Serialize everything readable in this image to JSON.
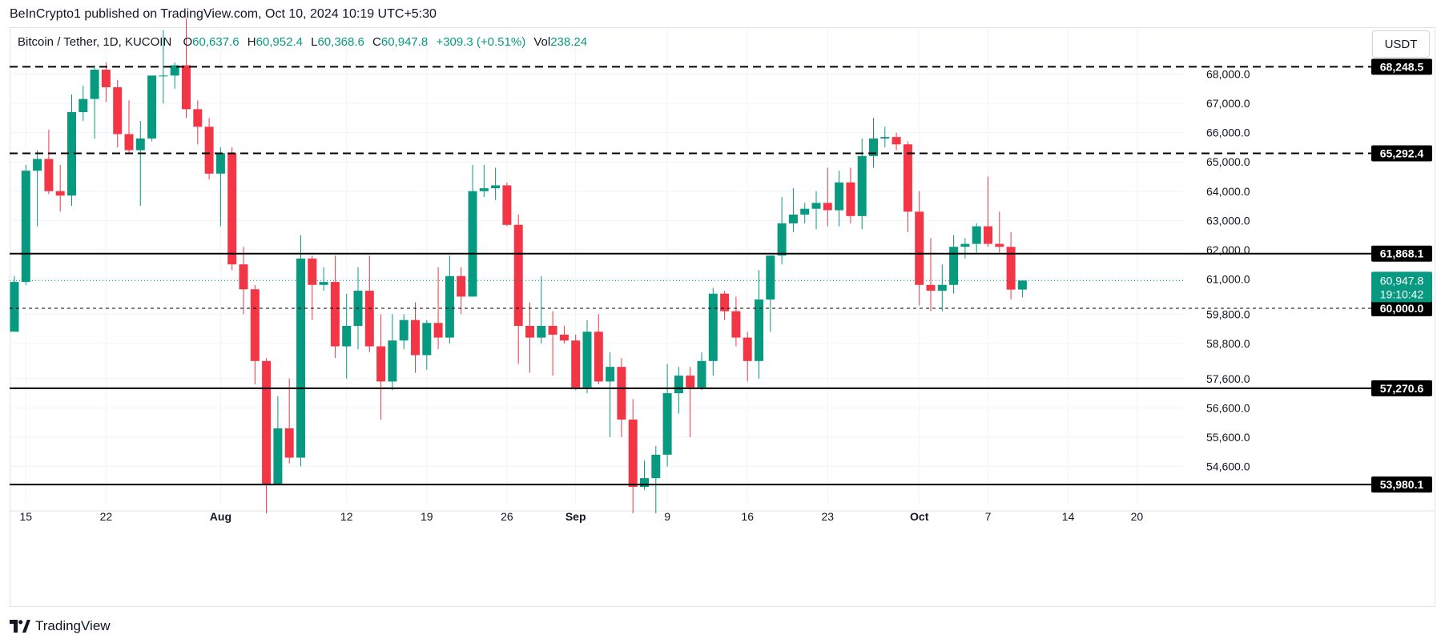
{
  "header": {
    "published_text": "BeInCrypto1 published on TradingView.com, Oct 10, 2024 10:19 UTC+5:30"
  },
  "legend": {
    "symbol": "Bitcoin / Tether, 1D, KUCOIN",
    "open_label": "O",
    "open_value": "60,637.6",
    "high_label": "H",
    "high_value": "60,952.4",
    "low_label": "L",
    "low_value": "60,368.6",
    "close_label": "C",
    "close_value": "60,947.8",
    "change_value": "+309.3 (+0.51%)",
    "vol_label": "Vol",
    "vol_value": "238.24"
  },
  "currency_button": "USDT",
  "footer": {
    "brand": "TradingView"
  },
  "colors": {
    "up": "#089981",
    "down": "#f23645",
    "grid": "#f0f3fa",
    "axis_text": "#131722",
    "level_line": "#000000",
    "price_line": "#089981"
  },
  "chart_data": {
    "type": "candlestick",
    "title": "Bitcoin / Tether, 1D, KUCOIN",
    "ylim": [
      53300,
      69600
    ],
    "y_ticks": [
      "54,600.0",
      "55,600.0",
      "56,600.0",
      "57,600.0",
      "58,800.0",
      "59,800.0",
      "61,000.0",
      "62,000.0",
      "63,000.0",
      "64,000.0",
      "65,000.0",
      "66,000.0",
      "67,000.0",
      "68,000.0"
    ],
    "y_tick_values": [
      54600,
      55600,
      56600,
      57600,
      58800,
      59800,
      61000,
      62000,
      63000,
      64000,
      65000,
      66000,
      67000,
      68000
    ],
    "x_ticks": [
      {
        "label": "15",
        "bar": 1,
        "bold": false
      },
      {
        "label": "22",
        "bar": 8,
        "bold": false
      },
      {
        "label": "Aug",
        "bar": 18,
        "bold": true
      },
      {
        "label": "12",
        "bar": 29,
        "bold": false
      },
      {
        "label": "19",
        "bar": 36,
        "bold": false
      },
      {
        "label": "26",
        "bar": 43,
        "bold": false
      },
      {
        "label": "Sep",
        "bar": 49,
        "bold": true
      },
      {
        "label": "9",
        "bar": 57,
        "bold": false
      },
      {
        "label": "16",
        "bar": 64,
        "bold": false
      },
      {
        "label": "23",
        "bar": 71,
        "bold": false
      },
      {
        "label": "Oct",
        "bar": 79,
        "bold": true
      },
      {
        "label": "7",
        "bar": 85,
        "bold": false
      },
      {
        "label": "14",
        "bar": 92,
        "bold": false
      },
      {
        "label": "20",
        "bar": 98,
        "bold": false
      }
    ],
    "levels": [
      {
        "value": 68248.5,
        "label": "68,248.5",
        "style": "dashed"
      },
      {
        "value": 65292.4,
        "label": "65,292.4",
        "style": "dashed"
      },
      {
        "value": 61868.1,
        "label": "61,868.1",
        "style": "solid"
      },
      {
        "value": 60000.0,
        "label": "60,000.0",
        "style": "dotted"
      },
      {
        "value": 57270.6,
        "label": "57,270.6",
        "style": "solid"
      },
      {
        "value": 53980.1,
        "label": "53,980.1",
        "style": "solid"
      }
    ],
    "last_price": {
      "value": 60947.8,
      "label": "60,947.8",
      "countdown": "19:10:42"
    },
    "candles": [
      {
        "d": "Jul 14",
        "o": 59200,
        "h": 61100,
        "l": 59200,
        "c": 60900
      },
      {
        "d": "Jul 15",
        "o": 60900,
        "h": 64900,
        "l": 60800,
        "c": 64700
      },
      {
        "d": "Jul 16",
        "o": 64700,
        "h": 65400,
        "l": 62800,
        "c": 65100
      },
      {
        "d": "Jul 17",
        "o": 65100,
        "h": 66100,
        "l": 63900,
        "c": 64000
      },
      {
        "d": "Jul 18",
        "o": 64000,
        "h": 64900,
        "l": 63300,
        "c": 63850
      },
      {
        "d": "Jul 19",
        "o": 63850,
        "h": 67300,
        "l": 63500,
        "c": 66700
      },
      {
        "d": "Jul 20",
        "o": 66700,
        "h": 67600,
        "l": 66400,
        "c": 67150
      },
      {
        "d": "Jul 21",
        "o": 67150,
        "h": 68300,
        "l": 65800,
        "c": 68150
      },
      {
        "d": "Jul 22",
        "o": 68150,
        "h": 68400,
        "l": 67050,
        "c": 67550
      },
      {
        "d": "Jul 23",
        "o": 67550,
        "h": 67800,
        "l": 65500,
        "c": 65950
      },
      {
        "d": "Jul 24",
        "o": 65950,
        "h": 67100,
        "l": 65300,
        "c": 65400
      },
      {
        "d": "Jul 25",
        "o": 65400,
        "h": 66400,
        "l": 63500,
        "c": 65800
      },
      {
        "d": "Jul 26",
        "o": 65800,
        "h": 67900,
        "l": 65700,
        "c": 67950
      },
      {
        "d": "Jul 27",
        "o": 67950,
        "h": 69500,
        "l": 67000,
        "c": 67950
      },
      {
        "d": "Jul 28",
        "o": 67950,
        "h": 68400,
        "l": 67500,
        "c": 68300
      },
      {
        "d": "Jul 29",
        "o": 68300,
        "h": 69900,
        "l": 66500,
        "c": 66800
      },
      {
        "d": "Jul 30",
        "o": 66800,
        "h": 67100,
        "l": 65600,
        "c": 66200
      },
      {
        "d": "Jul 31",
        "o": 66200,
        "h": 66500,
        "l": 64400,
        "c": 64600
      },
      {
        "d": "Aug 1",
        "o": 64600,
        "h": 65500,
        "l": 62800,
        "c": 65300
      },
      {
        "d": "Aug 2",
        "o": 65300,
        "h": 65500,
        "l": 61300,
        "c": 61500
      },
      {
        "d": "Aug 3",
        "o": 61500,
        "h": 62100,
        "l": 59800,
        "c": 60650
      },
      {
        "d": "Aug 4",
        "o": 60650,
        "h": 60800,
        "l": 57400,
        "c": 58200
      },
      {
        "d": "Aug 5",
        "o": 58200,
        "h": 58300,
        "l": 53000,
        "c": 54000
      },
      {
        "d": "Aug 6",
        "o": 54000,
        "h": 57000,
        "l": 54000,
        "c": 55900
      },
      {
        "d": "Aug 7",
        "o": 55900,
        "h": 57600,
        "l": 54700,
        "c": 54900
      },
      {
        "d": "Aug 8",
        "o": 54900,
        "h": 62500,
        "l": 54600,
        "c": 61700
      },
      {
        "d": "Aug 9",
        "o": 61700,
        "h": 61800,
        "l": 59600,
        "c": 60800
      },
      {
        "d": "Aug 10",
        "o": 60800,
        "h": 61400,
        "l": 60600,
        "c": 60900
      },
      {
        "d": "Aug 11",
        "o": 60900,
        "h": 61800,
        "l": 58300,
        "c": 58700
      },
      {
        "d": "Aug 12",
        "o": 58700,
        "h": 60500,
        "l": 57600,
        "c": 59400
      },
      {
        "d": "Aug 13",
        "o": 59400,
        "h": 61400,
        "l": 58600,
        "c": 60600
      },
      {
        "d": "Aug 14",
        "o": 60600,
        "h": 61800,
        "l": 58500,
        "c": 58700
      },
      {
        "d": "Aug 15",
        "o": 58700,
        "h": 59800,
        "l": 56200,
        "c": 57500
      },
      {
        "d": "Aug 16",
        "o": 57500,
        "h": 59800,
        "l": 57200,
        "c": 58900
      },
      {
        "d": "Aug 17",
        "o": 58900,
        "h": 59800,
        "l": 58600,
        "c": 59600
      },
      {
        "d": "Aug 18",
        "o": 59600,
        "h": 60200,
        "l": 57800,
        "c": 58400
      },
      {
        "d": "Aug 19",
        "o": 58400,
        "h": 59600,
        "l": 57900,
        "c": 59500
      },
      {
        "d": "Aug 20",
        "o": 59500,
        "h": 61400,
        "l": 58600,
        "c": 59000
      },
      {
        "d": "Aug 21",
        "o": 59000,
        "h": 61800,
        "l": 58800,
        "c": 61100
      },
      {
        "d": "Aug 22",
        "o": 61100,
        "h": 61400,
        "l": 59800,
        "c": 60400
      },
      {
        "d": "Aug 23",
        "o": 60400,
        "h": 64900,
        "l": 60400,
        "c": 64000
      },
      {
        "d": "Aug 24",
        "o": 64000,
        "h": 64900,
        "l": 63800,
        "c": 64100
      },
      {
        "d": "Aug 25",
        "o": 64100,
        "h": 64800,
        "l": 63700,
        "c": 64200
      },
      {
        "d": "Aug 26",
        "o": 64200,
        "h": 64300,
        "l": 62800,
        "c": 62850
      },
      {
        "d": "Aug 27",
        "o": 62850,
        "h": 63200,
        "l": 58100,
        "c": 59400
      },
      {
        "d": "Aug 28",
        "o": 59400,
        "h": 60200,
        "l": 57800,
        "c": 59000
      },
      {
        "d": "Aug 29",
        "o": 59000,
        "h": 61100,
        "l": 58800,
        "c": 59400
      },
      {
        "d": "Aug 30",
        "o": 59400,
        "h": 59900,
        "l": 57700,
        "c": 59100
      },
      {
        "d": "Aug 31",
        "o": 59100,
        "h": 59400,
        "l": 58800,
        "c": 58900
      },
      {
        "d": "Sep 1",
        "o": 58900,
        "h": 59100,
        "l": 57200,
        "c": 57300
      },
      {
        "d": "Sep 2",
        "o": 57300,
        "h": 59600,
        "l": 57100,
        "c": 59200
      },
      {
        "d": "Sep 3",
        "o": 59200,
        "h": 59800,
        "l": 57400,
        "c": 57500
      },
      {
        "d": "Sep 4",
        "o": 57500,
        "h": 58500,
        "l": 55600,
        "c": 58000
      },
      {
        "d": "Sep 5",
        "o": 58000,
        "h": 58300,
        "l": 55600,
        "c": 56200
      },
      {
        "d": "Sep 6",
        "o": 56200,
        "h": 56900,
        "l": 53000,
        "c": 53900
      },
      {
        "d": "Sep 7",
        "o": 53900,
        "h": 54800,
        "l": 53800,
        "c": 54200
      },
      {
        "d": "Sep 8",
        "o": 54200,
        "h": 55300,
        "l": 53000,
        "c": 55000
      },
      {
        "d": "Sep 9",
        "o": 55000,
        "h": 58100,
        "l": 54600,
        "c": 57100
      },
      {
        "d": "Sep 10",
        "o": 57100,
        "h": 58000,
        "l": 56400,
        "c": 57700
      },
      {
        "d": "Sep 11",
        "o": 57700,
        "h": 58000,
        "l": 55600,
        "c": 57300
      },
      {
        "d": "Sep 12",
        "o": 57300,
        "h": 58500,
        "l": 57200,
        "c": 58200
      },
      {
        "d": "Sep 13",
        "o": 58200,
        "h": 60700,
        "l": 57700,
        "c": 60500
      },
      {
        "d": "Sep 14",
        "o": 60500,
        "h": 60600,
        "l": 59600,
        "c": 59900
      },
      {
        "d": "Sep 15",
        "o": 59900,
        "h": 60400,
        "l": 58700,
        "c": 59000
      },
      {
        "d": "Sep 16",
        "o": 59000,
        "h": 59200,
        "l": 57500,
        "c": 58200
      },
      {
        "d": "Sep 17",
        "o": 58200,
        "h": 61300,
        "l": 57600,
        "c": 60300
      },
      {
        "d": "Sep 18",
        "o": 60300,
        "h": 61800,
        "l": 59200,
        "c": 61800
      },
      {
        "d": "Sep 19",
        "o": 61800,
        "h": 63800,
        "l": 61500,
        "c": 62900
      },
      {
        "d": "Sep 20",
        "o": 62900,
        "h": 64100,
        "l": 62600,
        "c": 63200
      },
      {
        "d": "Sep 21",
        "o": 63200,
        "h": 63600,
        "l": 62900,
        "c": 63400
      },
      {
        "d": "Sep 22",
        "o": 63400,
        "h": 64000,
        "l": 62700,
        "c": 63600
      },
      {
        "d": "Sep 23",
        "o": 63600,
        "h": 64800,
        "l": 62800,
        "c": 63350
      },
      {
        "d": "Sep 24",
        "o": 63350,
        "h": 64700,
        "l": 62800,
        "c": 64300
      },
      {
        "d": "Sep 25",
        "o": 64300,
        "h": 64800,
        "l": 62900,
        "c": 63150
      },
      {
        "d": "Sep 26",
        "o": 63150,
        "h": 65800,
        "l": 62700,
        "c": 65200
      },
      {
        "d": "Sep 27",
        "o": 65200,
        "h": 66500,
        "l": 64800,
        "c": 65800
      },
      {
        "d": "Sep 28",
        "o": 65800,
        "h": 66200,
        "l": 65500,
        "c": 65850
      },
      {
        "d": "Sep 29",
        "o": 65850,
        "h": 66000,
        "l": 65400,
        "c": 65600
      },
      {
        "d": "Sep 30",
        "o": 65600,
        "h": 65700,
        "l": 62600,
        "c": 63300
      },
      {
        "d": "Oct 1",
        "o": 63300,
        "h": 64000,
        "l": 60100,
        "c": 60800
      },
      {
        "d": "Oct 2",
        "o": 60800,
        "h": 62400,
        "l": 59900,
        "c": 60600
      },
      {
        "d": "Oct 3",
        "o": 60600,
        "h": 61500,
        "l": 59900,
        "c": 60800
      },
      {
        "d": "Oct 4",
        "o": 60800,
        "h": 62500,
        "l": 60500,
        "c": 62100
      },
      {
        "d": "Oct 5",
        "o": 62100,
        "h": 62400,
        "l": 61700,
        "c": 62200
      },
      {
        "d": "Oct 6",
        "o": 62200,
        "h": 62900,
        "l": 61900,
        "c": 62800
      },
      {
        "d": "Oct 7",
        "o": 62800,
        "h": 64500,
        "l": 62100,
        "c": 62200
      },
      {
        "d": "Oct 8",
        "o": 62200,
        "h": 63300,
        "l": 61900,
        "c": 62100
      },
      {
        "d": "Oct 9",
        "o": 62100,
        "h": 62600,
        "l": 60300,
        "c": 60640
      },
      {
        "d": "Oct 10",
        "o": 60640,
        "h": 60952,
        "l": 60369,
        "c": 60948
      }
    ]
  }
}
